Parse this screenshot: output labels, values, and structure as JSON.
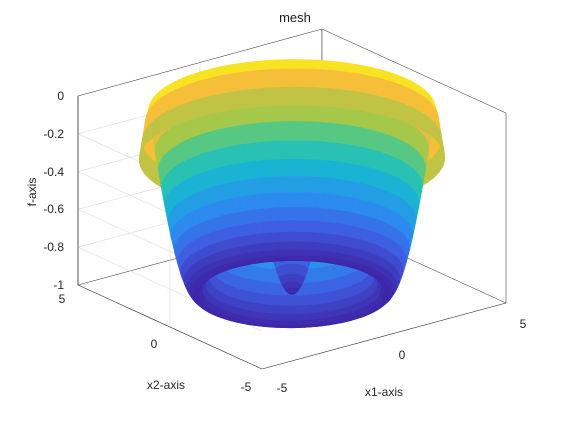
{
  "chart_data": {
    "type": "surface",
    "title": "mesh",
    "xlabel": "x1-axis",
    "ylabel": "x2-axis",
    "zlabel": "f-axis",
    "xlim": [
      -5,
      5
    ],
    "ylim": [
      -5,
      5
    ],
    "zlim": [
      -1,
      0
    ],
    "x_ticks": [
      "-5",
      "0",
      "5"
    ],
    "y_ticks": [
      "5",
      "0",
      "-5"
    ],
    "z_ticks": [
      "0",
      "-0.2",
      "-0.4",
      "-0.6",
      "-0.8",
      "-1"
    ],
    "function": "f(x1,x2) = -|cos(sqrt(x1^2+x2^2))| (radially symmetric ripple surface)",
    "colormap": "parula",
    "colormap_stops": [
      "#3e26a8",
      "#3f5ce0",
      "#2c8cf0",
      "#1ab2d8",
      "#2ec8a2",
      "#a2c84a",
      "#f6ba3c",
      "#f9fb15"
    ],
    "grid": true,
    "box": true
  }
}
